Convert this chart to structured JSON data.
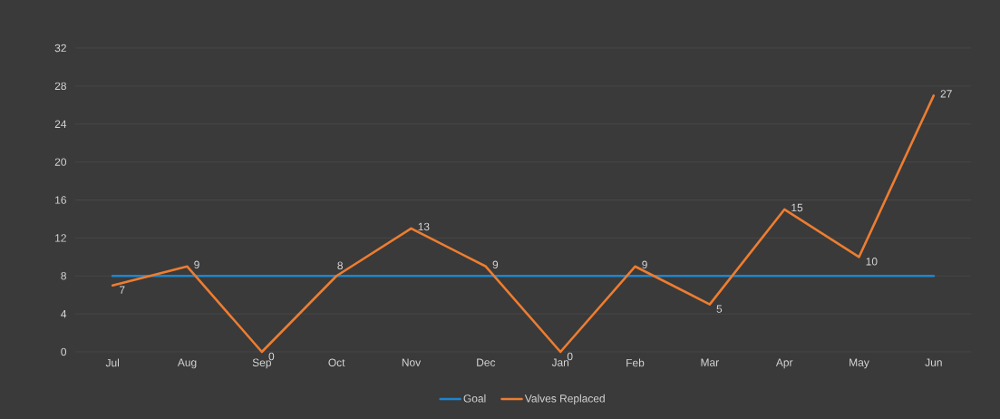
{
  "chart_data": {
    "type": "line",
    "categories": [
      "Jul",
      "Aug",
      "Sep",
      "Oct",
      "Nov",
      "Dec",
      "Jan",
      "Feb",
      "Mar",
      "Apr",
      "May",
      "Jun"
    ],
    "series": [
      {
        "name": "Goal",
        "color": "#1a86d0",
        "values": [
          8,
          8,
          8,
          8,
          8,
          8,
          8,
          8,
          8,
          8,
          8,
          8
        ]
      },
      {
        "name": "Valves Replaced",
        "color": "#ed7d31",
        "values": [
          7,
          9,
          0,
          8,
          13,
          9,
          0,
          9,
          5,
          15,
          10,
          27
        ],
        "value_labels": [
          "7",
          "9",
          "0",
          "8",
          "13",
          "9",
          "0",
          "9",
          "5",
          "15",
          "10",
          "27"
        ]
      }
    ],
    "ylim": [
      0,
      32
    ],
    "yticks": [
      0,
      4,
      8,
      12,
      16,
      20,
      24,
      28,
      32
    ],
    "grid": "y",
    "legend": "bottom",
    "marker": "none",
    "line_style": "solid"
  }
}
